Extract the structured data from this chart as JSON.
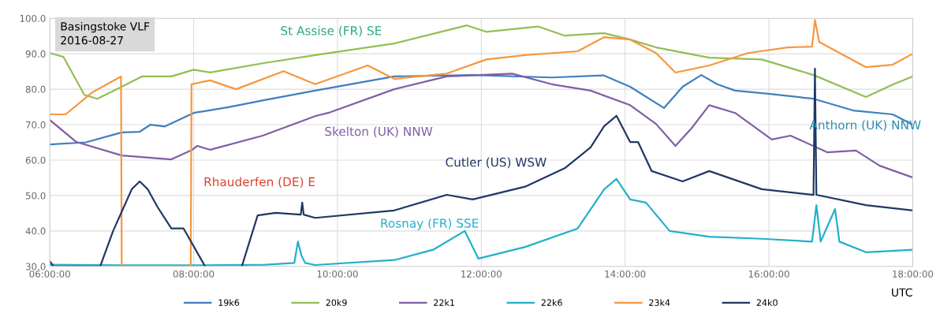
{
  "chart_data": {
    "type": "line",
    "title": "Basingstoke VLF\n2016-08-27",
    "xlabel": "UTC",
    "xlim": [
      6,
      18
    ],
    "xticks": [
      {
        "value": 6,
        "label": "06:00:00"
      },
      {
        "value": 8,
        "label": "08:00:00"
      },
      {
        "value": 10,
        "label": "10:00:00"
      },
      {
        "value": 12,
        "label": "12:00:00"
      },
      {
        "value": 14,
        "label": "14:00:00"
      },
      {
        "value": 16,
        "label": "16:00:00"
      },
      {
        "value": 18,
        "label": "18:00:00"
      }
    ],
    "ylim": [
      30,
      100
    ],
    "yticks": [
      {
        "value": 30,
        "label": "30.0"
      },
      {
        "value": 40,
        "label": "40.0"
      },
      {
        "value": 50,
        "label": "50.0"
      },
      {
        "value": 60,
        "label": "60.0"
      },
      {
        "value": 70,
        "label": "70.0"
      },
      {
        "value": 80,
        "label": "80.0"
      },
      {
        "value": 90,
        "label": "90.0"
      },
      {
        "value": 100,
        "label": "100.0"
      }
    ],
    "grid": true,
    "legend": "bottom",
    "marker": "none",
    "line_style": "solid",
    "series": [
      {
        "name": "19k6",
        "color": "#3f7fbf",
        "x": [
          6.0,
          6.5,
          7.0,
          7.25,
          7.4,
          7.6,
          8.0,
          8.5,
          9.0,
          9.69,
          10.79,
          11.88,
          12.98,
          13.7,
          14.07,
          14.54,
          14.8,
          15.06,
          15.28,
          15.53,
          15.99,
          16.62,
          17.17,
          17.72,
          18.0
        ],
        "values": [
          64.4,
          65.0,
          67.8,
          68.0,
          70.0,
          69.5,
          73.3,
          75.0,
          77.0,
          79.6,
          83.6,
          84.0,
          83.3,
          83.9,
          80.7,
          74.7,
          80.7,
          84.0,
          81.4,
          79.6,
          78.7,
          77.3,
          74.0,
          72.9,
          70.0
        ]
      },
      {
        "name": "20k9",
        "color": "#92bf52",
        "x": [
          6.0,
          6.19,
          6.48,
          6.66,
          7.0,
          7.28,
          7.69,
          8.0,
          8.23,
          8.96,
          9.69,
          10.79,
          11.8,
          12.07,
          12.79,
          13.16,
          13.71,
          14.07,
          14.43,
          15.17,
          15.9,
          16.62,
          17.35,
          17.72,
          18.0
        ],
        "values": [
          90.2,
          89.1,
          78.4,
          77.3,
          80.7,
          83.6,
          83.6,
          85.5,
          84.7,
          87.3,
          89.6,
          92.9,
          98.0,
          96.2,
          97.7,
          95.1,
          95.8,
          94.0,
          91.8,
          88.9,
          88.4,
          84.0,
          77.8,
          81.3,
          83.6
        ]
      },
      {
        "name": "22k1",
        "color": "#7f5fa5",
        "x": [
          6.0,
          6.37,
          7.0,
          7.69,
          7.98,
          8.05,
          8.23,
          8.96,
          9.69,
          9.87,
          10.79,
          11.52,
          12.43,
          12.98,
          13.52,
          14.07,
          14.43,
          14.7,
          14.92,
          15.17,
          15.53,
          16.04,
          16.3,
          16.81,
          17.21,
          17.54,
          18.0
        ],
        "values": [
          71.3,
          65.1,
          61.3,
          60.2,
          62.9,
          64.0,
          62.9,
          66.9,
          72.4,
          73.3,
          80.0,
          83.6,
          84.4,
          81.4,
          79.6,
          75.5,
          70.2,
          64.0,
          68.9,
          75.5,
          73.3,
          65.8,
          66.9,
          62.2,
          62.7,
          58.4,
          55.1
        ]
      },
      {
        "name": "22k6",
        "color": "#22b0cc",
        "x": [
          6.0,
          7.0,
          8.0,
          9.0,
          9.4,
          9.45,
          9.5,
          9.55,
          9.69,
          10.79,
          11.33,
          11.77,
          11.96,
          12.61,
          13.34,
          13.71,
          13.88,
          14.07,
          14.29,
          14.62,
          15.17,
          15.9,
          16.6,
          16.66,
          16.72,
          16.92,
          16.98,
          17.35,
          18.0
        ],
        "values": [
          30.5,
          30.3,
          30.3,
          30.5,
          31.0,
          37.0,
          33.0,
          31.0,
          30.4,
          31.8,
          34.7,
          40.0,
          32.2,
          35.5,
          40.7,
          51.8,
          54.7,
          48.9,
          48.0,
          40.0,
          38.4,
          37.8,
          37.0,
          47.3,
          37.0,
          46.2,
          37.0,
          34.0,
          34.7
        ]
      },
      {
        "name": "23k4",
        "color": "#f7963f",
        "x": [
          6.0,
          6.22,
          6.59,
          6.99,
          7.0,
          7.96,
          7.97,
          8.23,
          8.59,
          9.25,
          9.69,
          10.42,
          10.79,
          11.52,
          12.07,
          12.61,
          13.34,
          13.71,
          14.07,
          14.43,
          14.7,
          15.17,
          15.71,
          16.26,
          16.6,
          16.64,
          16.7,
          17.35,
          17.72,
          18.0
        ],
        "values": [
          72.9,
          72.9,
          79.1,
          83.6,
          30.0,
          30.0,
          81.4,
          82.5,
          80.0,
          85.1,
          81.4,
          86.7,
          82.9,
          84.4,
          88.4,
          89.6,
          90.7,
          94.7,
          94.0,
          90.2,
          84.7,
          86.7,
          90.2,
          91.8,
          92.0,
          99.5,
          93.3,
          86.2,
          86.9,
          90.0
        ]
      },
      {
        "name": "24k0",
        "color": "#1f3864",
        "x": [
          6.0,
          6.05,
          6.7,
          6.88,
          7.14,
          7.25,
          7.36,
          7.5,
          7.69,
          7.86,
          8.16,
          8.4,
          8.67,
          8.89,
          9.14,
          9.49,
          9.51,
          9.53,
          9.69,
          10.79,
          11.52,
          11.88,
          12.61,
          13.16,
          13.52,
          13.71,
          13.88,
          14.07,
          14.18,
          14.37,
          14.8,
          15.17,
          15.9,
          16.62,
          16.64,
          16.66,
          17.35,
          18.0
        ],
        "values": [
          31.5,
          30.0,
          30.0,
          40.0,
          51.8,
          54.0,
          51.8,
          46.7,
          40.7,
          40.7,
          30.0,
          null,
          30.0,
          44.4,
          45.1,
          44.6,
          48.0,
          44.6,
          43.7,
          45.8,
          50.2,
          48.9,
          52.5,
          57.7,
          63.6,
          69.6,
          72.5,
          65.1,
          65.1,
          56.9,
          54.0,
          56.9,
          51.8,
          50.2,
          85.8,
          50.2,
          47.3,
          45.8
        ]
      }
    ],
    "annotations": [
      "St Assise (FR) SE",
      "Skelton (UK) NNW",
      "Rhauderfen (DE) E",
      "Cutler (US) WSW",
      "Rosnay (FR) SSE",
      "Anthorn (UK) NNW"
    ]
  }
}
